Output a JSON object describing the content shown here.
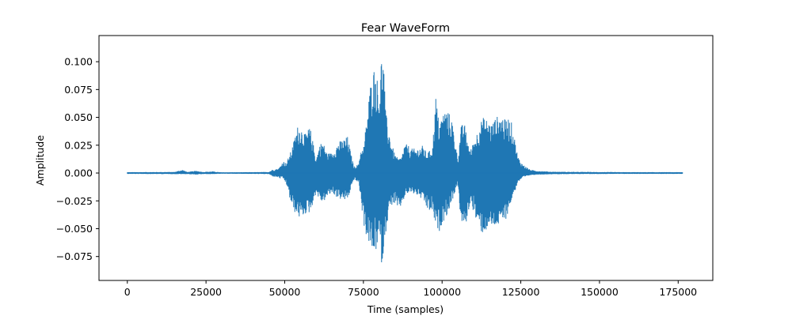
{
  "chart_data": {
    "type": "line",
    "title": "Fear WaveForm",
    "xlabel": "Time (samples)",
    "ylabel": "Amplitude",
    "xlim": [
      -9000,
      186000
    ],
    "ylim": [
      -0.0965,
      0.1235
    ],
    "x_ticks": [
      0,
      25000,
      50000,
      75000,
      100000,
      125000,
      150000,
      175000
    ],
    "x_tick_labels": [
      "0",
      "25000",
      "50000",
      "75000",
      "100000",
      "125000",
      "150000",
      "175000"
    ],
    "y_ticks": [
      -0.075,
      -0.05,
      -0.025,
      0.0,
      0.025,
      0.05,
      0.075,
      0.1
    ],
    "y_tick_labels": [
      "−0.075",
      "−0.050",
      "−0.025",
      "0.000",
      "0.025",
      "0.050",
      "0.075",
      "0.100"
    ],
    "grid": false,
    "legend": "none",
    "series_color": "#1f77b4",
    "total_samples": 176400,
    "envelope": {
      "sample": [
        0,
        15000,
        17500,
        19000,
        22000,
        24000,
        27000,
        30000,
        40000,
        45000,
        46000,
        48000,
        48500,
        49500,
        50500,
        52000,
        53000,
        54000,
        55000,
        56500,
        58000,
        60000,
        61000,
        62000,
        63500,
        65000,
        67000,
        69000,
        70000,
        71000,
        72000,
        73500,
        74000,
        75000,
        76000,
        77000,
        78000,
        79000,
        80000,
        80500,
        81000,
        81500,
        82000,
        83000,
        84000,
        85000,
        86000,
        87000,
        88000,
        89000,
        90000,
        92000,
        94000,
        95000,
        96000,
        97000,
        98000,
        99000,
        100000,
        101000,
        102000,
        103000,
        104000,
        105000,
        106000,
        107000,
        108000,
        109000,
        110000,
        111000,
        112000,
        113000,
        114000,
        115000,
        116000,
        117000,
        118000,
        119000,
        120000,
        121000,
        122000,
        123000,
        124000,
        125000,
        126000,
        128000,
        130000,
        135000,
        145000,
        160000,
        176400
      ],
      "upper": [
        0.0008,
        0.001,
        0.003,
        0.001,
        0.002,
        0.001,
        0.0015,
        0.0006,
        0.0008,
        0.001,
        0.003,
        0.004,
        0.006,
        0.011,
        0.009,
        0.02,
        0.03,
        0.042,
        0.043,
        0.035,
        0.042,
        0.013,
        0.025,
        0.029,
        0.018,
        0.018,
        0.028,
        0.031,
        0.033,
        0.018,
        0.006,
        0.008,
        0.021,
        0.022,
        0.048,
        0.075,
        0.095,
        0.095,
        0.07,
        0.1,
        0.11,
        0.098,
        0.057,
        0.04,
        0.026,
        0.017,
        0.013,
        0.014,
        0.025,
        0.026,
        0.022,
        0.022,
        0.025,
        0.018,
        0.02,
        0.025,
        0.07,
        0.045,
        0.052,
        0.058,
        0.055,
        0.05,
        0.033,
        0.012,
        0.042,
        0.046,
        0.031,
        0.02,
        0.029,
        0.036,
        0.045,
        0.05,
        0.049,
        0.046,
        0.045,
        0.05,
        0.052,
        0.052,
        0.048,
        0.05,
        0.046,
        0.032,
        0.016,
        0.01,
        0.007,
        0.003,
        0.002,
        0.0012,
        0.001,
        0.0008,
        0.0008
      ],
      "lower": [
        -0.0008,
        -0.001,
        -0.001,
        -0.001,
        -0.0015,
        -0.001,
        -0.001,
        -0.0006,
        -0.0008,
        -0.001,
        -0.003,
        -0.004,
        -0.005,
        -0.005,
        -0.01,
        -0.028,
        -0.035,
        -0.038,
        -0.042,
        -0.037,
        -0.036,
        -0.018,
        -0.024,
        -0.027,
        -0.022,
        -0.018,
        -0.023,
        -0.025,
        -0.024,
        -0.015,
        -0.006,
        -0.009,
        -0.02,
        -0.045,
        -0.058,
        -0.065,
        -0.075,
        -0.07,
        -0.06,
        -0.075,
        -0.086,
        -0.065,
        -0.055,
        -0.038,
        -0.029,
        -0.028,
        -0.035,
        -0.03,
        -0.023,
        -0.019,
        -0.018,
        -0.02,
        -0.025,
        -0.032,
        -0.035,
        -0.035,
        -0.05,
        -0.054,
        -0.045,
        -0.041,
        -0.035,
        -0.027,
        -0.018,
        -0.01,
        -0.045,
        -0.05,
        -0.042,
        -0.025,
        -0.035,
        -0.045,
        -0.052,
        -0.055,
        -0.052,
        -0.049,
        -0.05,
        -0.048,
        -0.048,
        -0.046,
        -0.043,
        -0.036,
        -0.025,
        -0.018,
        -0.009,
        -0.006,
        -0.004,
        -0.002,
        -0.0015,
        -0.0011,
        -0.0009,
        -0.0008,
        -0.0008
      ]
    }
  }
}
